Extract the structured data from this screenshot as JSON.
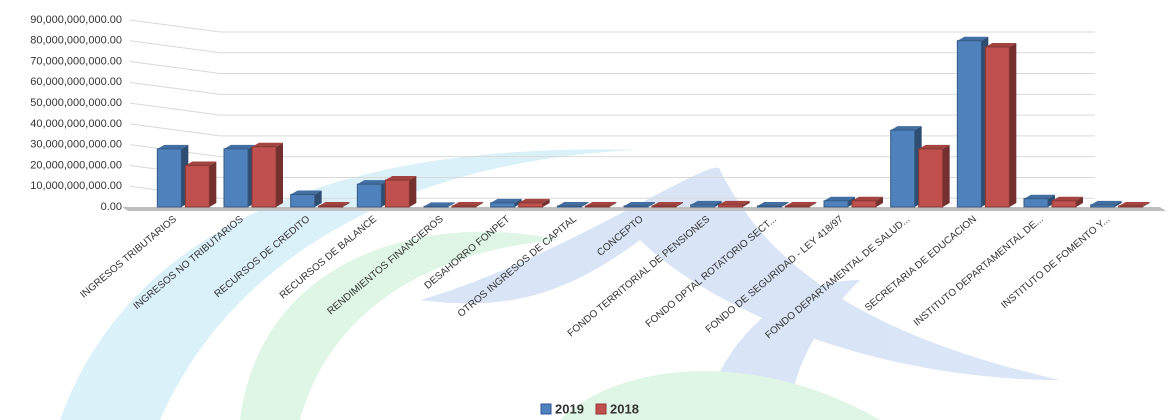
{
  "chart_data": {
    "type": "bar3d",
    "categories": [
      "INGRESOS TRIBUTARIOS",
      "INGRESOS NO TRIBUTARIOS",
      "RECURSOS DE CREDITO",
      "RECURSOS DE BALANCE",
      "RENDIMIENTOS FINANCIEROS",
      "DESAHORRO FONPET",
      "OTROS INGRESOS DE CAPITAL",
      "CONCEPTO",
      "FONDO TERRITORIAL DE PENSIONES",
      "FONDO DPTAL ROTATORIO SECT...",
      "FONDO DE SEGURIDAD - LEY 418/97",
      "FONDO DEPARTAMENTAL DE SALUD...",
      "SECRETARIA DE EDUCACION",
      "INSTITUTO DEPARTAMENTAL DE...",
      "INSTITUTO DE FOMENTO Y..."
    ],
    "series": [
      {
        "name": "2019",
        "color": "#4f81bd",
        "values": [
          28000000000,
          28000000000,
          6000000000,
          11000000000,
          300000000,
          2000000000,
          500000000,
          500000000,
          1000000000,
          500000000,
          3000000000,
          37000000000,
          80000000000,
          4000000000,
          1000000000
        ]
      },
      {
        "name": "2018",
        "color": "#c0504d",
        "values": [
          20000000000,
          29000000000,
          500000000,
          13000000000,
          500000000,
          2000000000,
          500000000,
          500000000,
          1000000000,
          500000000,
          3000000000,
          28000000000,
          77000000000,
          3000000000,
          500000000
        ]
      }
    ],
    "ylim": [
      0,
      90000000000
    ],
    "yticks": [
      {
        "value": 0,
        "label": "0.00"
      },
      {
        "value": 10000000000,
        "label": "10,000,000,000.00"
      },
      {
        "value": 20000000000,
        "label": "20,000,000,000.00"
      },
      {
        "value": 30000000000,
        "label": "30,000,000,000.00"
      },
      {
        "value": 40000000000,
        "label": "40,000,000,000.00"
      },
      {
        "value": 50000000000,
        "label": "50,000,000,000.00"
      },
      {
        "value": 60000000000,
        "label": "60,000,000,000.00"
      },
      {
        "value": 70000000000,
        "label": "70,000,000,000.00"
      },
      {
        "value": 80000000000,
        "label": "80,000,000,000.00"
      },
      {
        "value": 90000000000,
        "label": "90,000,000,000.00"
      }
    ],
    "grid": true
  }
}
